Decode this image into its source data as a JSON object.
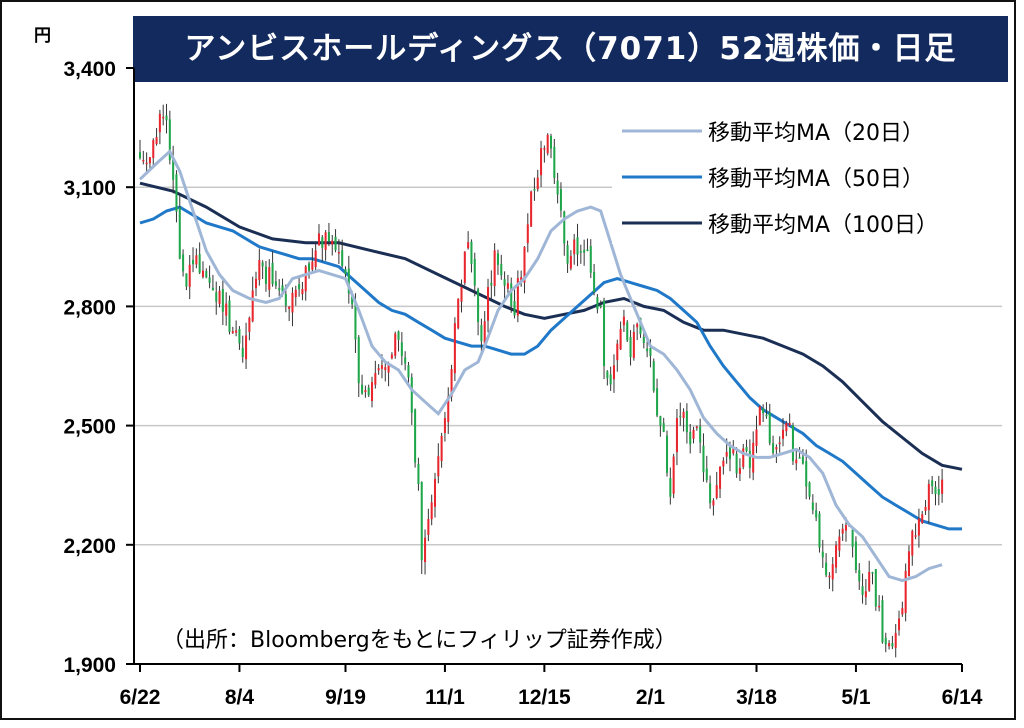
{
  "chart_data": {
    "type": "candlestick",
    "title": "アンビスホールディングス（7071）52週株価・日足",
    "ylabel": "円",
    "ylim": [
      1900,
      3400
    ],
    "yticks": [
      "3,400",
      "3,100",
      "2,800",
      "2,500",
      "2,200",
      "1,900"
    ],
    "ytick_values": [
      3400,
      3100,
      2800,
      2500,
      2200,
      1900
    ],
    "xticks": [
      "6/22",
      "8/4",
      "9/19",
      "11/1",
      "12/15",
      "2/1",
      "3/18",
      "5/1",
      "6/14"
    ],
    "xtick_index": [
      0,
      30,
      62,
      92,
      122,
      154,
      186,
      216,
      248
    ],
    "n_days": 249,
    "grid": true,
    "legend": {
      "placement": "top-right",
      "entries": [
        "移動平均MA（20日）",
        "移動平均MA（50日）",
        "移動平均MA（100日）"
      ]
    },
    "colors": {
      "up": "#e8262d",
      "down": "#1fa64a",
      "ma20": "#9fb6d6",
      "ma50": "#1f78c8",
      "ma100": "#1b2f55",
      "title_bg": "#132a5e",
      "grid": "#c8c8c8"
    },
    "candle_keypoints": [
      [
        0,
        3200
      ],
      [
        3,
        3160
      ],
      [
        6,
        3300
      ],
      [
        8,
        3250
      ],
      [
        10,
        3100
      ],
      [
        12,
        2930
      ],
      [
        14,
        2870
      ],
      [
        17,
        2920
      ],
      [
        19,
        2880
      ],
      [
        22,
        2860
      ],
      [
        25,
        2800
      ],
      [
        28,
        2740
      ],
      [
        31,
        2700
      ],
      [
        33,
        2800
      ],
      [
        36,
        2890
      ],
      [
        39,
        2870
      ],
      [
        42,
        2830
      ],
      [
        45,
        2800
      ],
      [
        48,
        2850
      ],
      [
        51,
        2900
      ],
      [
        54,
        2960
      ],
      [
        57,
        2990
      ],
      [
        60,
        2960
      ],
      [
        62,
        2900
      ],
      [
        64,
        2780
      ],
      [
        66,
        2620
      ],
      [
        68,
        2580
      ],
      [
        71,
        2620
      ],
      [
        74,
        2650
      ],
      [
        77,
        2730
      ],
      [
        80,
        2650
      ],
      [
        82,
        2540
      ],
      [
        84,
        2330
      ],
      [
        85,
        2180
      ],
      [
        87,
        2250
      ],
      [
        89,
        2380
      ],
      [
        91,
        2460
      ],
      [
        93,
        2560
      ],
      [
        95,
        2780
      ],
      [
        97,
        2870
      ],
      [
        99,
        2950
      ],
      [
        101,
        2830
      ],
      [
        103,
        2700
      ],
      [
        105,
        2830
      ],
      [
        107,
        2920
      ],
      [
        109,
        2900
      ],
      [
        111,
        2850
      ],
      [
        113,
        2790
      ],
      [
        115,
        2900
      ],
      [
        117,
        3020
      ],
      [
        119,
        3100
      ],
      [
        121,
        3180
      ],
      [
        123,
        3260
      ],
      [
        125,
        3150
      ],
      [
        127,
        3020
      ],
      [
        129,
        2880
      ],
      [
        131,
        2940
      ],
      [
        133,
        2960
      ],
      [
        135,
        2930
      ],
      [
        137,
        2860
      ],
      [
        139,
        2780
      ],
      [
        140,
        2650
      ],
      [
        142,
        2620
      ],
      [
        144,
        2700
      ],
      [
        146,
        2760
      ],
      [
        148,
        2700
      ],
      [
        150,
        2750
      ],
      [
        152,
        2710
      ],
      [
        154,
        2660
      ],
      [
        156,
        2520
      ],
      [
        158,
        2460
      ],
      [
        160,
        2350
      ],
      [
        162,
        2500
      ],
      [
        164,
        2550
      ],
      [
        166,
        2470
      ],
      [
        168,
        2480
      ],
      [
        170,
        2380
      ],
      [
        172,
        2320
      ],
      [
        174,
        2350
      ],
      [
        176,
        2440
      ],
      [
        178,
        2430
      ],
      [
        180,
        2400
      ],
      [
        182,
        2440
      ],
      [
        184,
        2400
      ],
      [
        186,
        2500
      ],
      [
        188,
        2560
      ],
      [
        190,
        2460
      ],
      [
        192,
        2440
      ],
      [
        194,
        2480
      ],
      [
        196,
        2480
      ],
      [
        198,
        2400
      ],
      [
        200,
        2380
      ],
      [
        202,
        2350
      ],
      [
        204,
        2260
      ],
      [
        206,
        2160
      ],
      [
        208,
        2120
      ],
      [
        210,
        2180
      ],
      [
        212,
        2270
      ],
      [
        214,
        2230
      ],
      [
        216,
        2110
      ],
      [
        218,
        2070
      ],
      [
        220,
        2140
      ],
      [
        222,
        2060
      ],
      [
        224,
        1980
      ],
      [
        226,
        1960
      ],
      [
        228,
        1960
      ],
      [
        230,
        2050
      ],
      [
        232,
        2200
      ],
      [
        234,
        2250
      ],
      [
        236,
        2280
      ],
      [
        238,
        2360
      ],
      [
        240,
        2330
      ],
      [
        242,
        2350
      ]
    ],
    "ma20_points": [
      [
        0,
        3120
      ],
      [
        5,
        3160
      ],
      [
        9,
        3190
      ],
      [
        12,
        3140
      ],
      [
        16,
        3040
      ],
      [
        20,
        2940
      ],
      [
        24,
        2880
      ],
      [
        28,
        2840
      ],
      [
        33,
        2820
      ],
      [
        38,
        2810
      ],
      [
        42,
        2820
      ],
      [
        46,
        2870
      ],
      [
        50,
        2880
      ],
      [
        54,
        2890
      ],
      [
        58,
        2880
      ],
      [
        62,
        2870
      ],
      [
        66,
        2790
      ],
      [
        70,
        2700
      ],
      [
        74,
        2660
      ],
      [
        78,
        2640
      ],
      [
        82,
        2590
      ],
      [
        86,
        2560
      ],
      [
        90,
        2530
      ],
      [
        94,
        2580
      ],
      [
        98,
        2640
      ],
      [
        102,
        2660
      ],
      [
        104,
        2700
      ],
      [
        108,
        2790
      ],
      [
        112,
        2840
      ],
      [
        116,
        2870
      ],
      [
        120,
        2920
      ],
      [
        124,
        2990
      ],
      [
        128,
        3020
      ],
      [
        132,
        3040
      ],
      [
        136,
        3050
      ],
      [
        139,
        3040
      ],
      [
        142,
        2960
      ],
      [
        145,
        2880
      ],
      [
        148,
        2820
      ],
      [
        151,
        2760
      ],
      [
        154,
        2700
      ],
      [
        158,
        2680
      ],
      [
        162,
        2640
      ],
      [
        166,
        2590
      ],
      [
        170,
        2520
      ],
      [
        174,
        2480
      ],
      [
        178,
        2450
      ],
      [
        182,
        2430
      ],
      [
        186,
        2420
      ],
      [
        190,
        2420
      ],
      [
        194,
        2430
      ],
      [
        198,
        2440
      ],
      [
        202,
        2420
      ],
      [
        206,
        2380
      ],
      [
        210,
        2300
      ],
      [
        214,
        2250
      ],
      [
        218,
        2220
      ],
      [
        222,
        2170
      ],
      [
        226,
        2120
      ],
      [
        230,
        2110
      ],
      [
        234,
        2120
      ],
      [
        238,
        2140
      ],
      [
        242,
        2150
      ]
    ],
    "ma50_points": [
      [
        0,
        3010
      ],
      [
        4,
        3020
      ],
      [
        8,
        3040
      ],
      [
        12,
        3050
      ],
      [
        16,
        3030
      ],
      [
        20,
        3010
      ],
      [
        24,
        3000
      ],
      [
        28,
        2990
      ],
      [
        32,
        2970
      ],
      [
        36,
        2950
      ],
      [
        40,
        2940
      ],
      [
        44,
        2930
      ],
      [
        48,
        2920
      ],
      [
        52,
        2920
      ],
      [
        56,
        2910
      ],
      [
        60,
        2900
      ],
      [
        64,
        2870
      ],
      [
        68,
        2840
      ],
      [
        72,
        2810
      ],
      [
        76,
        2790
      ],
      [
        80,
        2780
      ],
      [
        84,
        2760
      ],
      [
        88,
        2740
      ],
      [
        92,
        2720
      ],
      [
        96,
        2710
      ],
      [
        100,
        2700
      ],
      [
        104,
        2700
      ],
      [
        108,
        2690
      ],
      [
        112,
        2680
      ],
      [
        116,
        2680
      ],
      [
        120,
        2700
      ],
      [
        124,
        2740
      ],
      [
        128,
        2770
      ],
      [
        132,
        2800
      ],
      [
        136,
        2830
      ],
      [
        140,
        2860
      ],
      [
        144,
        2870
      ],
      [
        148,
        2860
      ],
      [
        152,
        2850
      ],
      [
        156,
        2840
      ],
      [
        160,
        2820
      ],
      [
        164,
        2790
      ],
      [
        168,
        2760
      ],
      [
        172,
        2700
      ],
      [
        176,
        2650
      ],
      [
        180,
        2610
      ],
      [
        184,
        2570
      ],
      [
        188,
        2540
      ],
      [
        192,
        2520
      ],
      [
        196,
        2500
      ],
      [
        200,
        2480
      ],
      [
        204,
        2450
      ],
      [
        208,
        2430
      ],
      [
        212,
        2410
      ],
      [
        216,
        2380
      ],
      [
        220,
        2350
      ],
      [
        224,
        2320
      ],
      [
        228,
        2300
      ],
      [
        232,
        2280
      ],
      [
        236,
        2260
      ],
      [
        240,
        2250
      ],
      [
        244,
        2240
      ],
      [
        248,
        2240
      ]
    ],
    "ma100_points": [
      [
        0,
        3110
      ],
      [
        10,
        3090
      ],
      [
        20,
        3050
      ],
      [
        30,
        3000
      ],
      [
        40,
        2970
      ],
      [
        50,
        2960
      ],
      [
        60,
        2960
      ],
      [
        70,
        2940
      ],
      [
        80,
        2920
      ],
      [
        90,
        2880
      ],
      [
        100,
        2840
      ],
      [
        110,
        2800
      ],
      [
        116,
        2780
      ],
      [
        122,
        2770
      ],
      [
        128,
        2780
      ],
      [
        134,
        2790
      ],
      [
        140,
        2810
      ],
      [
        146,
        2820
      ],
      [
        152,
        2800
      ],
      [
        158,
        2790
      ],
      [
        164,
        2760
      ],
      [
        170,
        2740
      ],
      [
        176,
        2740
      ],
      [
        182,
        2730
      ],
      [
        188,
        2720
      ],
      [
        194,
        2700
      ],
      [
        200,
        2680
      ],
      [
        206,
        2650
      ],
      [
        212,
        2610
      ],
      [
        218,
        2560
      ],
      [
        224,
        2510
      ],
      [
        230,
        2470
      ],
      [
        236,
        2430
      ],
      [
        242,
        2400
      ],
      [
        248,
        2390
      ]
    ],
    "source": "（出所：Bloombergをもとにフィリップ証券作成）"
  }
}
